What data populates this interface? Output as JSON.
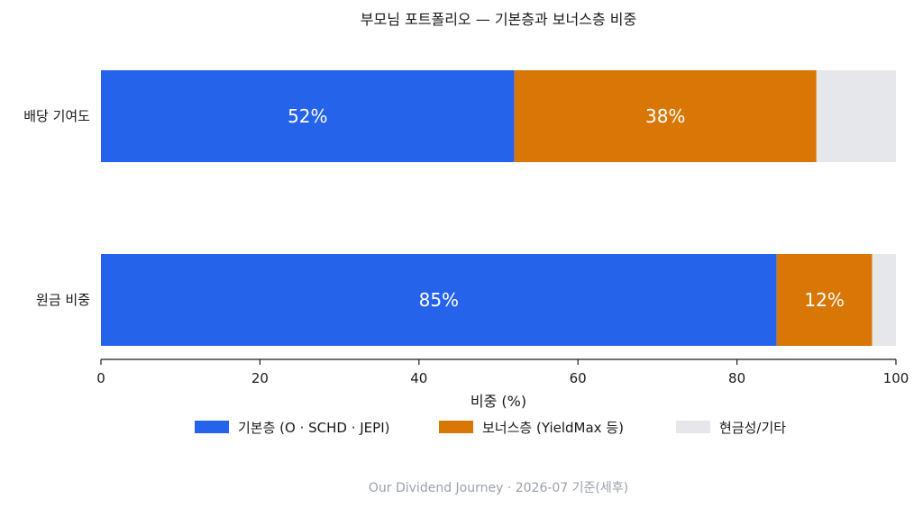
{
  "chart_data": {
    "type": "bar",
    "orientation": "horizontal",
    "stacked": true,
    "title": "부모님 포트폴리오 — 기본층과 보너스층 비중",
    "categories": [
      "배당 기여도",
      "원금 비중"
    ],
    "series": [
      {
        "name": "기본층 (O · SCHD · JEPI)",
        "values": [
          52,
          85
        ],
        "color": "#2563eb",
        "labels": [
          "52%",
          "85%"
        ]
      },
      {
        "name": "보너스층 (YieldMax 등)",
        "values": [
          38,
          12
        ],
        "color": "#d97706",
        "labels": [
          "38%",
          "12%"
        ]
      },
      {
        "name": "현금성/기타",
        "values": [
          10,
          3
        ],
        "color": "#e5e7eb",
        "labels": [
          "",
          ""
        ]
      }
    ],
    "xlabel": "비중 (%)",
    "ylabel": "",
    "xlim": [
      0,
      100
    ],
    "xticks": [
      0,
      20,
      40,
      60,
      80,
      100
    ],
    "grid": false,
    "legend_placement": "bottom-center"
  },
  "footer": "Our Dividend Journey · 2026-07 기준(세후)"
}
